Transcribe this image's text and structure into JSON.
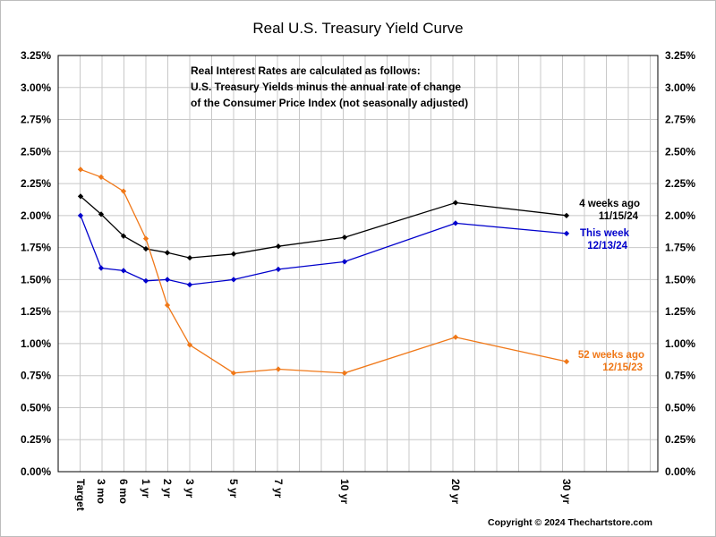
{
  "chart_data": {
    "type": "line",
    "title": "Real U.S. Treasury Yield Curve",
    "note_lines": [
      "Real Interest Rates are calculated as follows:",
      "U.S. Treasury Yields minus the annual rate of change",
      "of the Consumer Price Index (not seasonally adjusted)"
    ],
    "x_labels": [
      {
        "label": "Target",
        "month": 0
      },
      {
        "label": "3 mo",
        "month": 3
      },
      {
        "label": "6 mo",
        "month": 6
      },
      {
        "label": "1 yr",
        "month": 12
      },
      {
        "label": "2 yr",
        "month": 24
      },
      {
        "label": "3 yr",
        "month": 36
      },
      {
        "label": "5 yr",
        "month": 60
      },
      {
        "label": "7 yr",
        "month": 84
      },
      {
        "label": "10 yr",
        "month": 120
      },
      {
        "label": "20 yr",
        "month": 240
      },
      {
        "label": "30 yr",
        "month": 360
      }
    ],
    "ylim": [
      0,
      3.25
    ],
    "y_ticks": [
      "0.00%",
      "0.25%",
      "0.50%",
      "0.75%",
      "1.00%",
      "1.25%",
      "1.50%",
      "1.75%",
      "2.00%",
      "2.25%",
      "2.50%",
      "2.75%",
      "3.00%",
      "3.25%"
    ],
    "grid": true,
    "series": [
      {
        "name_lines": [
          "4 weeks ago",
          "11/15/24"
        ],
        "color": "#000000",
        "values": [
          2.15,
          2.01,
          1.84,
          1.74,
          1.71,
          1.67,
          1.7,
          1.76,
          1.83,
          2.1,
          2.0
        ]
      },
      {
        "name_lines": [
          "This week",
          "12/13/24"
        ],
        "color": "#0000cc",
        "values": [
          2.0,
          1.59,
          1.57,
          1.49,
          1.5,
          1.46,
          1.5,
          1.58,
          1.64,
          1.94,
          1.86
        ]
      },
      {
        "name_lines": [
          "52 weeks ago",
          "12/15/23"
        ],
        "color": "#f07818",
        "values": [
          2.36,
          2.3,
          2.19,
          1.82,
          1.3,
          0.99,
          0.77,
          0.8,
          0.77,
          1.05,
          0.86
        ]
      }
    ],
    "copyright": "Copyright © 2024 Thechartstore.com"
  }
}
